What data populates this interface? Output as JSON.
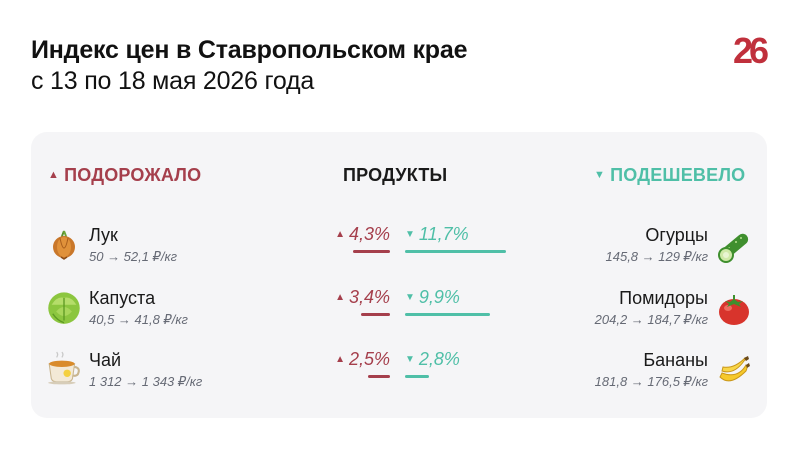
{
  "header": {
    "title": "Индекс цен в Ставропольском крае",
    "subtitle": "с 13 по 18 мая 2026 года",
    "logo_text": "26"
  },
  "columns": {
    "up_label": "ПОДОРОЖАЛО",
    "products_label": "ПРОДУКТЫ",
    "down_label": "ПОДЕШЕВЕЛО"
  },
  "colors": {
    "up": "#a53f4c",
    "down": "#4fbfa7",
    "card": "#f5f5f7"
  },
  "rows": [
    {
      "up": {
        "name": "Лук",
        "price": "50 → 52,1 ₽/кг",
        "icon": "onion-icon",
        "pct": "4,3%",
        "value": 4.3
      },
      "down": {
        "name": "Огурцы",
        "price": "145,8 → 129 ₽/кг",
        "icon": "cucumber-icon",
        "pct": "11,7%",
        "value": 11.7
      }
    },
    {
      "up": {
        "name": "Капуста",
        "price": "40,5 → 41,8 ₽/кг",
        "icon": "cabbage-icon",
        "pct": "3,4%",
        "value": 3.4
      },
      "down": {
        "name": "Помидоры",
        "price": "204,2 → 184,7 ₽/кг",
        "icon": "tomato-icon",
        "pct": "9,9%",
        "value": 9.9
      }
    },
    {
      "up": {
        "name": "Чай",
        "price": "1 312 → 1 343 ₽/кг",
        "icon": "tea-cup-icon",
        "pct": "2,5%",
        "value": 2.5
      },
      "down": {
        "name": "Бананы",
        "price": "181,8 → 176,5 ₽/кг",
        "icon": "banana-icon",
        "pct": "2,8%",
        "value": 2.8
      }
    }
  ]
}
